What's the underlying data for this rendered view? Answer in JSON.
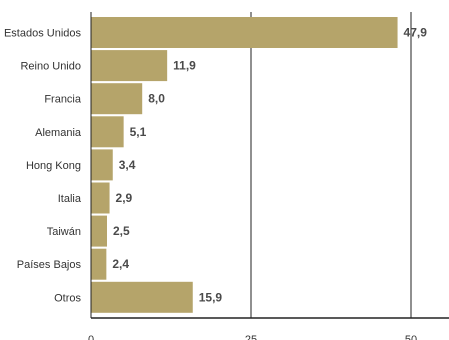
{
  "chart_data": {
    "type": "bar",
    "orientation": "horizontal",
    "categories": [
      "Estados Unidos",
      "Reino Unido",
      "Francia",
      "Alemania",
      "Hong Kong",
      "Italia",
      "Taiwán",
      "Países Bajos",
      "Otros"
    ],
    "values": [
      47.9,
      11.9,
      8.0,
      5.1,
      3.4,
      2.9,
      2.5,
      2.4,
      15.9
    ],
    "value_labels": [
      "47,9",
      "11,9",
      "8,0",
      "5,1",
      "3,4",
      "2,9",
      "2,5",
      "2,4",
      "15,9"
    ],
    "xlim": [
      0,
      50
    ],
    "x_ticks": [
      0,
      25,
      50
    ],
    "x_tick_labels": [
      "0",
      "25",
      "50"
    ],
    "grid": "vertical lines at 25 and 50",
    "legend": "none",
    "colors": {
      "bar": "#b5a46a",
      "grid": "#222222",
      "axis": "#222222"
    }
  }
}
